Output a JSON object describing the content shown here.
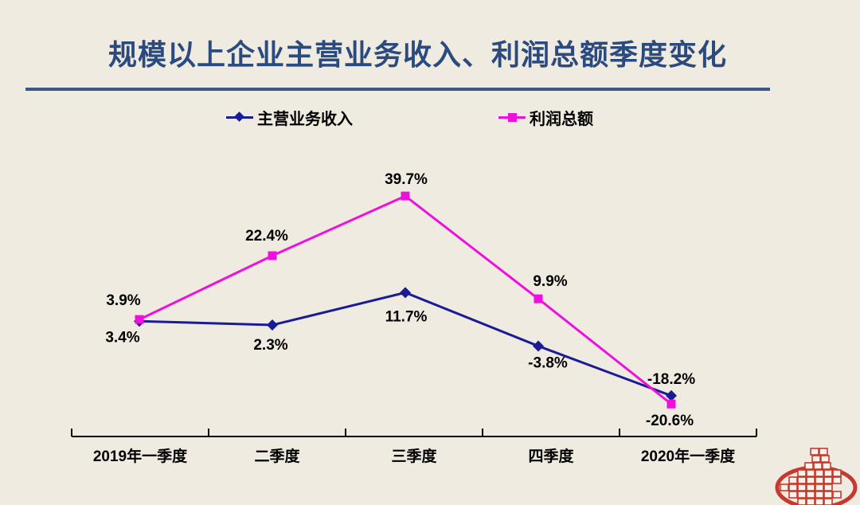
{
  "page": {
    "background_color": "#EFEBE0"
  },
  "header": {
    "title": "规模以上企业主营业务收入、利润总额季度变化",
    "title_color": "#2B4A80",
    "rule_color": "#3A5A85"
  },
  "legend": {
    "items": [
      {
        "label": "主营业务收入",
        "marker": "diamond",
        "color": "#1B1B96"
      },
      {
        "label": "利润总额",
        "marker": "square",
        "color": "#EE10DD"
      }
    ]
  },
  "chart_data": {
    "type": "line",
    "title": "规模以上企业主营业务收入、利润总额季度变化",
    "categories": [
      "2019年一季度",
      "二季度",
      "三季度",
      "四季度",
      "2020年一季度"
    ],
    "unit": "%",
    "series": [
      {
        "name": "主营业务收入",
        "color": "#1B1B96",
        "marker": "diamond",
        "values": [
          3.4,
          2.3,
          11.7,
          -3.8,
          -18.2
        ],
        "data_labels": [
          "3.4%",
          "2.3%",
          "11.7%",
          "-3.8%",
          "-18.2%"
        ],
        "label_offsets": [
          [
            -21,
            26
          ],
          [
            -2,
            31
          ],
          [
            1,
            36
          ],
          [
            12,
            27
          ],
          [
            0,
            -15
          ]
        ]
      },
      {
        "name": "利润总额",
        "color": "#EE10DD",
        "marker": "square",
        "values": [
          3.9,
          22.4,
          39.7,
          9.9,
          -20.6
        ],
        "data_labels": [
          "3.9%",
          "22.4%",
          "39.7%",
          "9.9%",
          "-20.6%"
        ],
        "label_offsets": [
          [
            -20,
            -18
          ],
          [
            -7,
            -19
          ],
          [
            1,
            -15
          ],
          [
            15,
            -16
          ],
          [
            -2,
            27
          ]
        ]
      }
    ],
    "xlabel": "",
    "ylabel": "",
    "ylim": [
      -25,
      45
    ],
    "grid": false,
    "legend_position": "top",
    "axis_color": "#000000",
    "data_label_color": "#000000"
  },
  "logo": {
    "name": "national-bureau-of-statistics-emblem",
    "color": "#C5392F"
  }
}
